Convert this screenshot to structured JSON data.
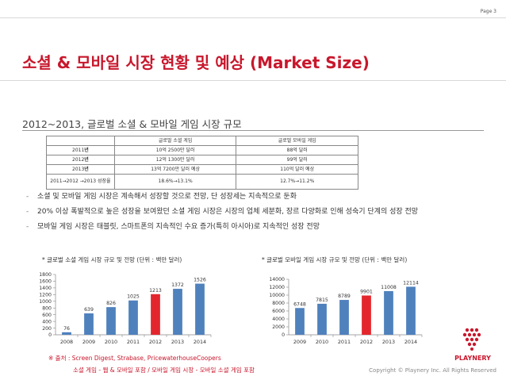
{
  "page": {
    "number": "Page 3"
  },
  "title": "소셜 & 모바일 시장 현황 및 예상 (Market Size)",
  "subtitle": "2012~2013, 글로벌 소셜 & 모바일 게임 시장 규모",
  "table": {
    "headers": [
      "",
      "글로벌 소셜 게임",
      "글로벌 모바일 게임"
    ],
    "rows": [
      {
        "year_num": "2011",
        "year_suffix": "년",
        "social": "10억 2500만 달러",
        "mobile": "88억 달러"
      },
      {
        "year_num": "2012",
        "year_suffix": "년",
        "social": "12억 1300만 달러",
        "mobile": "99억 달러"
      },
      {
        "year_num": "2013",
        "year_suffix": "년",
        "social": "13억 7200만 달러 예상",
        "mobile": "110억 달러 예상"
      },
      {
        "year_num": "2011→2012 →2013 성장율",
        "year_suffix": "",
        "social": "18.6%→13.1%",
        "mobile": "12.7%→11.2%"
      }
    ]
  },
  "bullets": [
    "소셜 및 모바일 게임 시장은 계속해서 성장할 것으로 전망, 단 성장세는 지속적으로 둔화",
    "20% 이상 폭발적으로 높은 성장을 보여왔던 소셜 게임 시장은 시장의 업체 세분화, 장르 다양화로 인해 성숙기 단계의 성장 전망",
    "모바일 게임 시장은 태블릿, 스마트폰의 지속적인 수요 증가(특히 아시아)로 지속적인 성장 전망"
  ],
  "chart_data": [
    {
      "type": "bar",
      "title": "* 글로벌 소셜 게임 시장 규모 및 전망 (단위 : 백만 달러)",
      "categories": [
        "2008",
        "2009",
        "2010",
        "2011",
        "2012",
        "2013",
        "2014"
      ],
      "values": [
        76,
        639,
        826,
        1025,
        1213,
        1372,
        1526
      ],
      "highlight_index": 4,
      "ylim": [
        0,
        1800
      ],
      "yticks": [
        0,
        200,
        400,
        600,
        800,
        1000,
        1200,
        1400,
        1600,
        1800
      ],
      "colors": {
        "bar": "#4f81bd",
        "highlight": "#e3262e"
      },
      "grid": false
    },
    {
      "type": "bar",
      "title": "* 글로벌 모바일 게임 시장 규모 및 전망 (단위 : 백만 달러)",
      "categories": [
        "2009",
        "2010",
        "2011",
        "2012",
        "2013",
        "2014"
      ],
      "values": [
        6748,
        7815,
        8789,
        9901,
        11008,
        12114
      ],
      "highlight_index": 3,
      "ylim": [
        0,
        14000
      ],
      "yticks": [
        0,
        2000,
        4000,
        6000,
        8000,
        10000,
        12000,
        14000
      ],
      "colors": {
        "bar": "#4f81bd",
        "highlight": "#e3262e"
      },
      "grid": false
    }
  ],
  "source": {
    "line1": "※ 출처 : Screen Digest, Strabase, PricewaterhouseCoopers",
    "line2": "소셜 게임 - 웹 & 모바일 포함 / 모바일 게임 시장 - 모바일 소셜 게임 포함"
  },
  "copyright": "Copyright © Playnery Inc. All Rights Reserved",
  "logo": {
    "text": "PLAYNERY",
    "color": "#c8172c"
  }
}
